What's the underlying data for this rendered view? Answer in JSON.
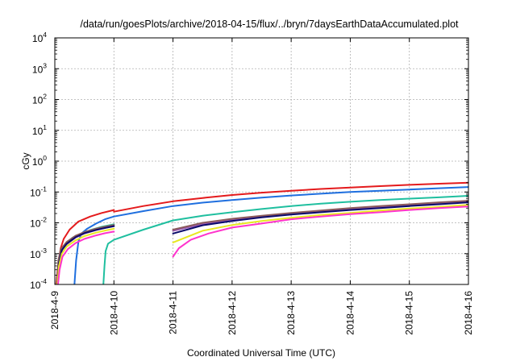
{
  "chart_data": {
    "type": "line",
    "title": "/data/run/goesPlots/archive/2018-04-15/flux/../bryn/7daysEarthDataAccumulated.plot",
    "xlabel": "Coordinated Universal Time (UTC)",
    "ylabel": "cGy",
    "y_scale": "log",
    "ylim": [
      0.0001,
      10000
    ],
    "y_ticks": [
      {
        "base": "10",
        "exp": "-4",
        "value": 0.0001
      },
      {
        "base": "10",
        "exp": "-3",
        "value": 0.001
      },
      {
        "base": "10",
        "exp": "-2",
        "value": 0.01
      },
      {
        "base": "10",
        "exp": "-1",
        "value": 0.1
      },
      {
        "base": "10",
        "exp": "0",
        "value": 1
      },
      {
        "base": "10",
        "exp": "1",
        "value": 10
      },
      {
        "base": "10",
        "exp": "2",
        "value": 100
      },
      {
        "base": "10",
        "exp": "3",
        "value": 1000
      },
      {
        "base": "10",
        "exp": "4",
        "value": 10000
      }
    ],
    "x_ticks": [
      "2018-4-9",
      "2018-4-10",
      "2018-4-11",
      "2018-4-12",
      "2018-4-13",
      "2018-4-14",
      "2018-4-15",
      "2018-4-16"
    ],
    "xlim": [
      "2018-04-09",
      "2018-04-16"
    ],
    "grid": true,
    "legend": "none",
    "series": [
      {
        "color": "#e41a1c",
        "segments": [
          [
            [
              0.02,
              8e-05
            ],
            [
              0.05,
              0.00035
            ],
            [
              0.1,
              0.0015
            ],
            [
              0.15,
              0.003
            ],
            [
              0.25,
              0.006
            ],
            [
              0.4,
              0.011
            ],
            [
              0.6,
              0.016
            ],
            [
              0.8,
              0.021
            ],
            [
              1.0,
              0.026
            ]
          ],
          [
            [
              1.0,
              0.023
            ],
            [
              1.5,
              0.035
            ],
            [
              2.0,
              0.05
            ],
            [
              2.5,
              0.064
            ],
            [
              3.0,
              0.08
            ],
            [
              3.5,
              0.095
            ],
            [
              4.0,
              0.11
            ],
            [
              4.5,
              0.125
            ],
            [
              5.0,
              0.14
            ],
            [
              5.5,
              0.155
            ],
            [
              6.0,
              0.17
            ],
            [
              6.5,
              0.185
            ],
            [
              7.0,
              0.2
            ]
          ]
        ]
      },
      {
        "color": "#1f6fdf",
        "segments": [
          [
            [
              0.33,
              8e-05
            ],
            [
              0.36,
              0.0006
            ],
            [
              0.4,
              0.0025
            ],
            [
              0.45,
              0.0045
            ],
            [
              0.55,
              0.0065
            ],
            [
              0.7,
              0.0095
            ],
            [
              0.85,
              0.013
            ],
            [
              1.0,
              0.016
            ]
          ],
          [
            [
              1.0,
              0.016
            ],
            [
              1.5,
              0.024
            ],
            [
              2.0,
              0.035
            ],
            [
              2.5,
              0.045
            ],
            [
              3.0,
              0.055
            ],
            [
              3.5,
              0.066
            ],
            [
              4.0,
              0.077
            ],
            [
              4.5,
              0.088
            ],
            [
              5.0,
              0.1
            ],
            [
              5.5,
              0.11
            ],
            [
              6.0,
              0.12
            ],
            [
              6.5,
              0.132
            ],
            [
              7.0,
              0.145
            ]
          ]
        ]
      },
      {
        "color": "#1fbf9f",
        "segments": [
          [
            [
              0.05,
              8e-05
            ],
            [
              0.08,
              0.0005
            ],
            [
              0.12,
              0.0013
            ],
            [
              0.2,
              0.0022
            ],
            [
              0.3,
              0.0033
            ],
            [
              0.45,
              0.0045
            ],
            [
              0.6,
              0.0058
            ],
            [
              0.8,
              0.0075
            ],
            [
              1.0,
              0.009
            ]
          ],
          [
            [
              0.82,
              8e-05
            ],
            [
              0.84,
              0.0004
            ],
            [
              0.86,
              0.0012
            ],
            [
              0.9,
              0.0021
            ],
            [
              1.0,
              0.0028
            ],
            [
              1.5,
              0.006
            ],
            [
              2.0,
              0.012
            ],
            [
              2.5,
              0.017
            ],
            [
              3.0,
              0.022
            ],
            [
              3.5,
              0.028
            ],
            [
              4.0,
              0.035
            ],
            [
              4.5,
              0.042
            ],
            [
              5.0,
              0.048
            ],
            [
              5.5,
              0.055
            ],
            [
              6.0,
              0.061
            ],
            [
              6.5,
              0.067
            ],
            [
              7.0,
              0.075
            ]
          ]
        ]
      },
      {
        "color": "#9b59b6",
        "segments": [
          [
            [
              0.03,
              8e-05
            ],
            [
              0.06,
              0.0005
            ],
            [
              0.1,
              0.0012
            ],
            [
              0.2,
              0.002
            ],
            [
              0.35,
              0.0033
            ],
            [
              0.5,
              0.0045
            ],
            [
              0.7,
              0.0058
            ],
            [
              0.85,
              0.0068
            ],
            [
              1.0,
              0.0077
            ]
          ],
          [
            [
              2.0,
              0.0055
            ],
            [
              2.5,
              0.009
            ],
            [
              3.0,
              0.0125
            ],
            [
              3.5,
              0.016
            ],
            [
              4.0,
              0.02
            ],
            [
              4.5,
              0.024
            ],
            [
              5.0,
              0.028
            ],
            [
              5.5,
              0.033
            ],
            [
              6.0,
              0.038
            ],
            [
              6.5,
              0.043
            ],
            [
              7.0,
              0.05
            ]
          ]
        ]
      },
      {
        "color": "#8a5a5a",
        "segments": [
          [
            [
              0.03,
              8e-05
            ],
            [
              0.06,
              0.0006
            ],
            [
              0.1,
              0.0014
            ],
            [
              0.2,
              0.0024
            ],
            [
              0.35,
              0.0038
            ],
            [
              0.5,
              0.005
            ],
            [
              0.7,
              0.0065
            ],
            [
              0.85,
              0.0075
            ],
            [
              1.0,
              0.0085
            ]
          ],
          [
            [
              2.0,
              0.006
            ],
            [
              2.5,
              0.01
            ],
            [
              3.0,
              0.0135
            ],
            [
              3.5,
              0.017
            ],
            [
              4.0,
              0.021
            ],
            [
              4.5,
              0.025
            ],
            [
              5.0,
              0.03
            ],
            [
              5.5,
              0.035
            ],
            [
              6.0,
              0.04
            ],
            [
              6.5,
              0.046
            ],
            [
              7.0,
              0.052
            ]
          ]
        ]
      },
      {
        "color": "#0a0a6a",
        "segments": [
          [
            [
              0.04,
              8e-05
            ],
            [
              0.07,
              0.0005
            ],
            [
              0.12,
              0.0013
            ],
            [
              0.2,
              0.0021
            ],
            [
              0.35,
              0.0034
            ],
            [
              0.5,
              0.0046
            ],
            [
              0.7,
              0.0059
            ],
            [
              0.85,
              0.0068
            ],
            [
              1.0,
              0.0078
            ]
          ],
          [
            [
              2.0,
              0.0045
            ],
            [
              2.5,
              0.0083
            ],
            [
              3.0,
              0.0115
            ],
            [
              3.5,
              0.015
            ],
            [
              4.0,
              0.0185
            ],
            [
              4.5,
              0.022
            ],
            [
              5.0,
              0.026
            ],
            [
              5.5,
              0.03
            ],
            [
              6.0,
              0.035
            ],
            [
              6.5,
              0.04
            ],
            [
              7.0,
              0.046
            ]
          ]
        ]
      },
      {
        "color": "#e8e820",
        "segments": [
          [
            [
              0.04,
              8e-05
            ],
            [
              0.07,
              0.0004
            ],
            [
              0.12,
              0.001
            ],
            [
              0.2,
              0.0017
            ],
            [
              0.35,
              0.0027
            ],
            [
              0.5,
              0.0037
            ],
            [
              0.7,
              0.0048
            ],
            [
              0.85,
              0.0056
            ],
            [
              1.0,
              0.0064
            ]
          ],
          [
            [
              2.0,
              0.0023
            ],
            [
              2.5,
              0.0055
            ],
            [
              3.0,
              0.0085
            ],
            [
              3.5,
              0.0115
            ],
            [
              4.0,
              0.0145
            ],
            [
              4.5,
              0.018
            ],
            [
              5.0,
              0.021
            ],
            [
              5.5,
              0.025
            ],
            [
              6.0,
              0.029
            ],
            [
              6.5,
              0.033
            ],
            [
              7.0,
              0.038
            ]
          ]
        ]
      },
      {
        "color": "#ff33cc",
        "segments": [
          [
            [
              0.05,
              8e-05
            ],
            [
              0.08,
              0.0003
            ],
            [
              0.13,
              0.0008
            ],
            [
              0.22,
              0.0014
            ],
            [
              0.35,
              0.0022
            ],
            [
              0.5,
              0.003
            ],
            [
              0.7,
              0.0039
            ],
            [
              0.85,
              0.0046
            ],
            [
              1.0,
              0.0052
            ]
          ],
          [
            [
              2.0,
              0.0008
            ],
            [
              2.1,
              0.0015
            ],
            [
              2.3,
              0.0028
            ],
            [
              2.6,
              0.0045
            ],
            [
              3.0,
              0.007
            ],
            [
              3.5,
              0.0095
            ],
            [
              4.0,
              0.013
            ],
            [
              4.5,
              0.016
            ],
            [
              5.0,
              0.019
            ],
            [
              5.5,
              0.022
            ],
            [
              6.0,
              0.026
            ],
            [
              6.5,
              0.03
            ],
            [
              7.0,
              0.034
            ]
          ]
        ]
      }
    ]
  }
}
